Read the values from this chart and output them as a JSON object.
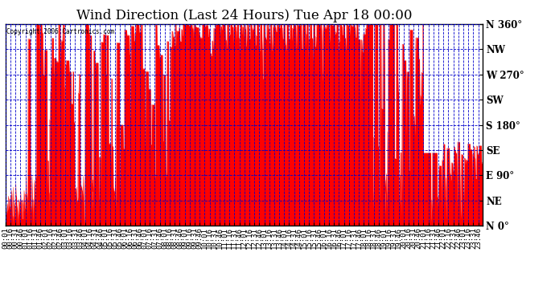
{
  "title": "Wind Direction (Last 24 Hours) Tue Apr 18 00:00",
  "copyright_text": "Copyright 2006 Cartronics.com",
  "ylabel_ticks": [
    0,
    45,
    90,
    135,
    180,
    225,
    270,
    315,
    360
  ],
  "ylabel_labels": [
    "N 0°",
    "NE",
    "E 90°",
    "SE",
    "S 180°",
    "SW",
    "W 270°",
    "NW",
    "N 360°"
  ],
  "ylim": [
    0,
    360
  ],
  "background_color": "#ffffff",
  "plot_bg_color": "#ffffff",
  "line_color": "#ff0000",
  "fill_color": "#ff0000",
  "grid_color": "#0000cc",
  "title_fontsize": 12,
  "tick_fontsize": 6.5,
  "border_color": "#000000",
  "seed": 42,
  "n_points": 1440
}
